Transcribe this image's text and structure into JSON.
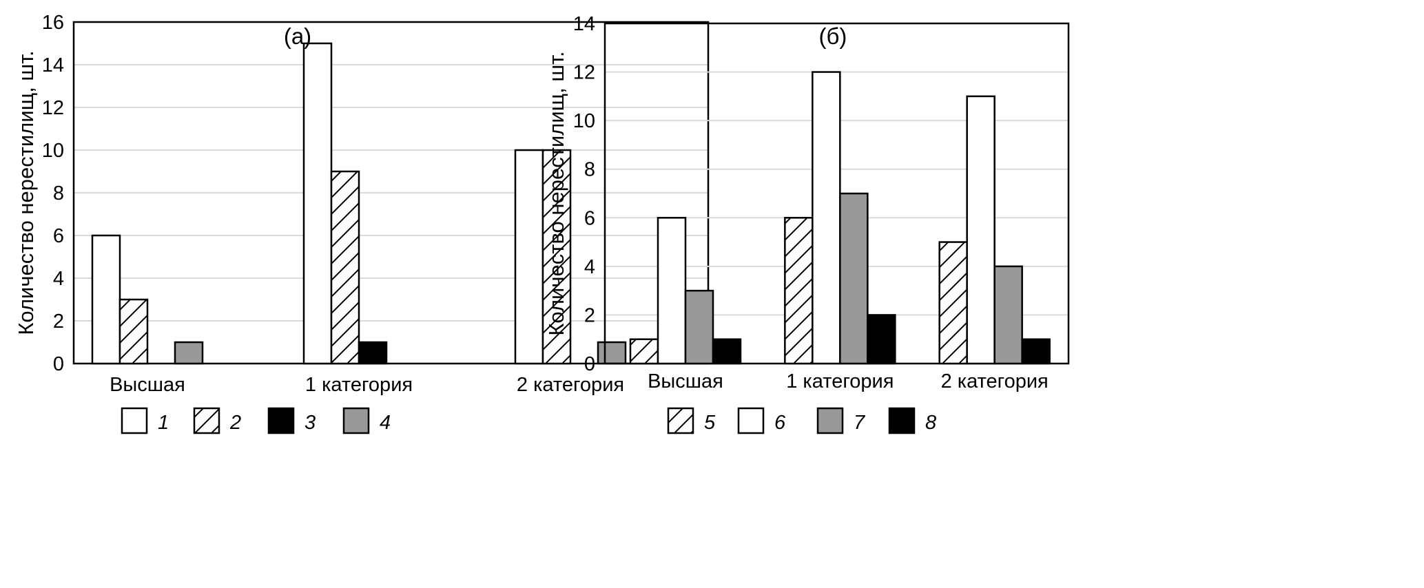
{
  "colors": {
    "axis": "#000000",
    "grid": "#d9d9d9",
    "white": "#ffffff",
    "gray": "#999999",
    "black": "#000000",
    "border": "#000000"
  },
  "chart_data": [
    {
      "type": "bar",
      "title": "(а)",
      "ylabel": "Количество нерестилищ, шт.",
      "xlabel": "",
      "ylim": [
        0,
        16
      ],
      "ytick_step": 2,
      "grid": true,
      "legend_position": "bottom",
      "categories": [
        "Высшая",
        "1 категория",
        "2 категория"
      ],
      "series": [
        {
          "name": "1",
          "fill": "white",
          "values": [
            6,
            15,
            10
          ]
        },
        {
          "name": "2",
          "fill": "hatch",
          "values": [
            3,
            9,
            10
          ]
        },
        {
          "name": "3",
          "fill": "black",
          "values": [
            0,
            1,
            0
          ]
        },
        {
          "name": "4",
          "fill": "gray",
          "values": [
            1,
            0,
            1
          ]
        }
      ]
    },
    {
      "type": "bar",
      "title": "(б)",
      "ylabel": "Количество нерестилищ, шт.",
      "xlabel": "",
      "ylim": [
        0,
        14
      ],
      "ytick_step": 2,
      "grid": true,
      "legend_position": "bottom",
      "categories": [
        "Высшая",
        "1 категория",
        "2 категория"
      ],
      "series": [
        {
          "name": "5",
          "fill": "hatch",
          "values": [
            1,
            6,
            5
          ]
        },
        {
          "name": "6",
          "fill": "white",
          "values": [
            6,
            12,
            11
          ]
        },
        {
          "name": "7",
          "fill": "gray",
          "values": [
            3,
            7,
            4
          ]
        },
        {
          "name": "8",
          "fill": "black",
          "values": [
            1,
            2,
            1
          ]
        }
      ]
    }
  ]
}
